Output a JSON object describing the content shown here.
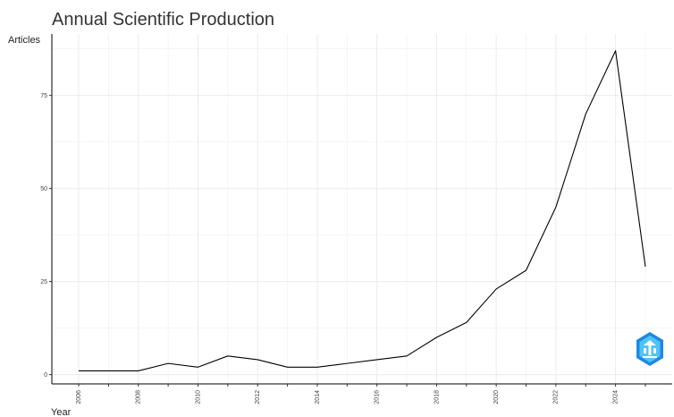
{
  "chart_data": {
    "type": "line",
    "title": "Annual Scientific Production",
    "xlabel": "Year",
    "ylabel": "Articles",
    "x": [
      2006,
      2007,
      2008,
      2009,
      2010,
      2011,
      2012,
      2013,
      2014,
      2015,
      2016,
      2017,
      2018,
      2019,
      2020,
      2021,
      2022,
      2023,
      2024,
      2025
    ],
    "series": [
      {
        "values": [
          1,
          1,
          1,
          3,
          2,
          5,
          4,
          2,
          2,
          3,
          4,
          5,
          10,
          14,
          23,
          28,
          45,
          70,
          87,
          29
        ]
      }
    ],
    "x_ticks": [
      "2006",
      "2008",
      "2010",
      "2012",
      "2014",
      "2016",
      "2018",
      "2020",
      "2022",
      "2024"
    ],
    "y_ticks": [
      "0",
      "25",
      "50",
      "75"
    ],
    "xlim": [
      2005.1,
      2025.9
    ],
    "ylim": [
      -2.5,
      91.5
    ],
    "grid": true,
    "legend": "none",
    "line_color": "#000000",
    "grid_color": "#ebebeb",
    "logo_icon": "bibliometrix-logo-icon",
    "logo_color": "#1e88e5"
  }
}
